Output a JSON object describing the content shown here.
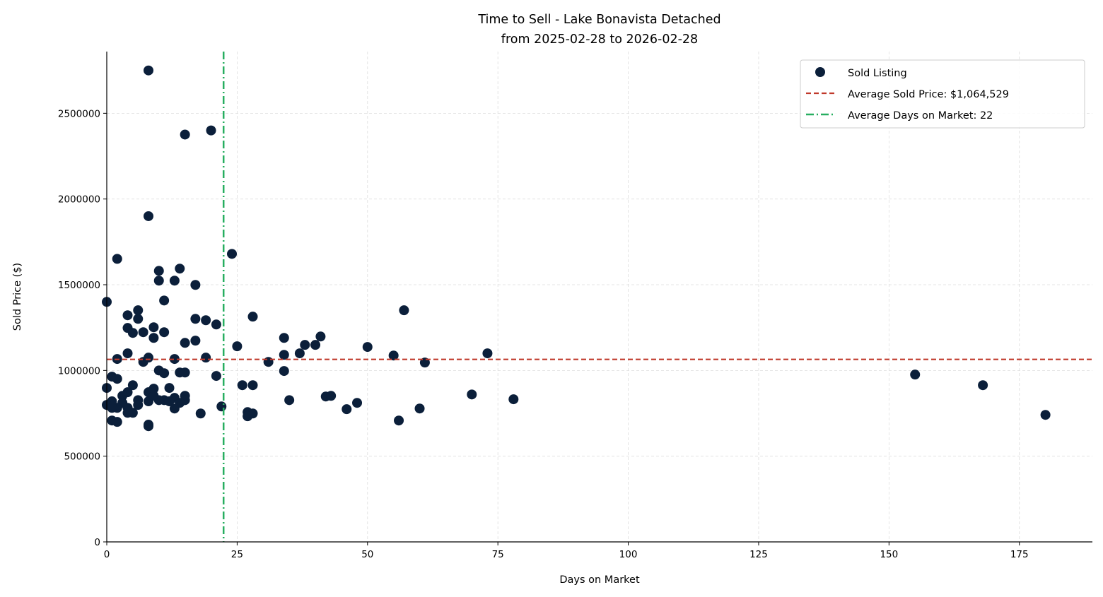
{
  "chart_data": {
    "type": "scatter",
    "title": "Time to Sell - Lake Bonavista Detached",
    "subtitle": "from 2025-02-28 to 2026-02-28",
    "xlabel": "Days on Market",
    "ylabel": "Sold Price ($)",
    "xlim": [
      0,
      189
    ],
    "ylim": [
      0,
      2860000
    ],
    "xticks": [
      0,
      25,
      50,
      75,
      100,
      125,
      150,
      175
    ],
    "yticks": [
      0,
      500000,
      1000000,
      1500000,
      2000000,
      2500000
    ],
    "grid": true,
    "legend_position": "top-right",
    "colors": {
      "points": "#0b1f3a",
      "avg_price": "#c0392b",
      "avg_days": "#27ae60"
    },
    "legend": [
      "Sold Listing",
      "Average Sold Price: $1,064,529",
      "Average Days on Market: 22"
    ],
    "avg_price": 1064529,
    "avg_days": 22.4,
    "points": [
      [
        8,
        2750000
      ],
      [
        15,
        2376000
      ],
      [
        20,
        2400000
      ],
      [
        8,
        1900000
      ],
      [
        2,
        1651000
      ],
      [
        24,
        1680000
      ],
      [
        10,
        1581000
      ],
      [
        14,
        1594000
      ],
      [
        10,
        1524000
      ],
      [
        13,
        1524000
      ],
      [
        17,
        1499000
      ],
      [
        0,
        1400000
      ],
      [
        11,
        1408000
      ],
      [
        4,
        1322000
      ],
      [
        6,
        1351000
      ],
      [
        6,
        1301000
      ],
      [
        17,
        1301000
      ],
      [
        19,
        1293000
      ],
      [
        21,
        1268000
      ],
      [
        28,
        1314000
      ],
      [
        57,
        1351000
      ],
      [
        4,
        1248000
      ],
      [
        5,
        1219000
      ],
      [
        7,
        1223000
      ],
      [
        9,
        1252000
      ],
      [
        11,
        1223000
      ],
      [
        9,
        1190000
      ],
      [
        15,
        1161000
      ],
      [
        17,
        1174000
      ],
      [
        25,
        1141000
      ],
      [
        34,
        1190000
      ],
      [
        41,
        1198000
      ],
      [
        38,
        1149000
      ],
      [
        40,
        1149000
      ],
      [
        37,
        1100000
      ],
      [
        34,
        1091000
      ],
      [
        50,
        1137000
      ],
      [
        55,
        1087000
      ],
      [
        73,
        1100000
      ],
      [
        4,
        1100000
      ],
      [
        2,
        1067000
      ],
      [
        8,
        1075000
      ],
      [
        7,
        1050000
      ],
      [
        13,
        1067000
      ],
      [
        19,
        1075000
      ],
      [
        31,
        1050000
      ],
      [
        61,
        1046000
      ],
      [
        10,
        1000000
      ],
      [
        11,
        984000
      ],
      [
        14,
        988000
      ],
      [
        15,
        988000
      ],
      [
        21,
        968000
      ],
      [
        34,
        997000
      ],
      [
        1,
        964000
      ],
      [
        2,
        951000
      ],
      [
        5,
        914000
      ],
      [
        9,
        894000
      ],
      [
        12,
        898000
      ],
      [
        26,
        914000
      ],
      [
        28,
        914000
      ],
      [
        0,
        898000
      ],
      [
        4,
        873000
      ],
      [
        8,
        873000
      ],
      [
        15,
        852000
      ],
      [
        13,
        840000
      ],
      [
        11,
        827000
      ],
      [
        10,
        827000
      ],
      [
        3,
        852000
      ],
      [
        6,
        827000
      ],
      [
        1,
        820000
      ],
      [
        3,
        811000
      ],
      [
        6,
        799000
      ],
      [
        8,
        820000
      ],
      [
        12,
        820000
      ],
      [
        15,
        827000
      ],
      [
        14,
        811000
      ],
      [
        0,
        799000
      ],
      [
        2,
        782000
      ],
      [
        4,
        782000
      ],
      [
        13,
        778000
      ],
      [
        1,
        782000
      ],
      [
        5,
        753000
      ],
      [
        4,
        753000
      ],
      [
        18,
        749000
      ],
      [
        22,
        790000
      ],
      [
        27,
        757000
      ],
      [
        28,
        749000
      ],
      [
        27,
        733000
      ],
      [
        35,
        827000
      ],
      [
        42,
        848000
      ],
      [
        43,
        852000
      ],
      [
        46,
        774000
      ],
      [
        48,
        811000
      ],
      [
        56,
        708000
      ],
      [
        60,
        778000
      ],
      [
        70,
        860000
      ],
      [
        78,
        832000
      ],
      [
        1,
        708000
      ],
      [
        2,
        700000
      ],
      [
        8,
        684000
      ],
      [
        8,
        675000
      ],
      [
        9,
        852000
      ],
      [
        155,
        976000
      ],
      [
        168,
        914000
      ],
      [
        180,
        741000
      ]
    ]
  }
}
